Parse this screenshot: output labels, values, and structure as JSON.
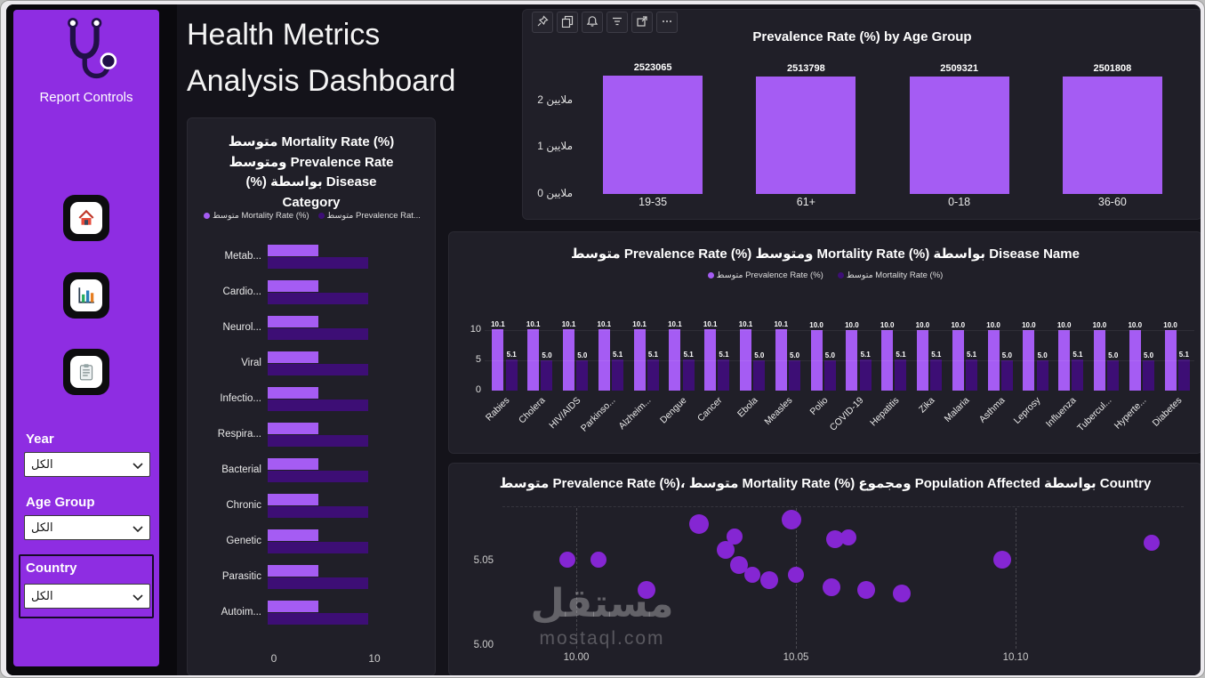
{
  "page": {
    "title_line1": "Health Metrics",
    "title_line2": "Analysis Dashboard"
  },
  "sidebar": {
    "title": "Report Controls",
    "filters": [
      {
        "label": "Year",
        "value": "الكل"
      },
      {
        "label": "Age Group",
        "value": "الكل"
      },
      {
        "label": "Country",
        "value": "الكل"
      }
    ],
    "nav_icons": [
      "home-icon",
      "bar-chart-icon",
      "clipboard-icon"
    ]
  },
  "toolbar": {
    "icons": [
      "pin",
      "copy",
      "alert",
      "filter",
      "popout",
      "more"
    ]
  },
  "watermark": {
    "line1": "مستقل",
    "line2": "mostaql.com"
  },
  "colors": {
    "accent_light": "#a55cf3",
    "accent_dark": "#3d0e75",
    "scatter": "#8526d3",
    "sidebar": "#8e2de2",
    "card_bg": "#201f28",
    "canvas_bg": "#14131a"
  },
  "chart_data": [
    {
      "id": "age_group_bar",
      "type": "bar",
      "title": "Prevalence Rate (%) by Age Group",
      "categories": [
        "19-35",
        "61+",
        "0-18",
        "36-60"
      ],
      "values": [
        2523065,
        2513798,
        2509321,
        2501808
      ],
      "value_labels": [
        "2523065",
        "2513798",
        "2509321",
        "2501808"
      ],
      "y_ticks": [
        {
          "label": "0 ملايين",
          "value": 0
        },
        {
          "label": "1 ملايين",
          "value": 1000000
        },
        {
          "label": "2 ملايين",
          "value": 2000000
        }
      ],
      "ylim": [
        0,
        2850000
      ],
      "grid": false,
      "legend_position": "none"
    },
    {
      "id": "disease_category_hbar",
      "type": "bar",
      "orientation": "horizontal",
      "title": "متوسط Mortality Rate (%) ومتوسط Prevalence Rate (%) بواسطة Disease Category",
      "legend": [
        {
          "label": "متوسط Mortality Rate (%)",
          "color": "#a55cf3"
        },
        {
          "label": "متوسط Prevalence Rat...",
          "color": "#3d0e75"
        }
      ],
      "categories": [
        "Metab...",
        "Cardio...",
        "Neurol...",
        "Viral",
        "Infectio...",
        "Respira...",
        "Bacterial",
        "Chronic",
        "Genetic",
        "Parasitic",
        "Autoim..."
      ],
      "series": [
        {
          "name": "متوسط Mortality Rate (%)",
          "color": "#a55cf3",
          "values": [
            5,
            5,
            5,
            5,
            5,
            5,
            5,
            5,
            5,
            5,
            5
          ]
        },
        {
          "name": "متوسط Prevalence Rate (%)",
          "color": "#3d0e75",
          "values": [
            10,
            10,
            10,
            10,
            10,
            10,
            10,
            10,
            10,
            10,
            10
          ]
        }
      ],
      "xlim": [
        0,
        10
      ],
      "x_ticks": [
        "0",
        "10"
      ],
      "legend_position": "top-left"
    },
    {
      "id": "disease_name_columns",
      "type": "bar",
      "title": "متوسط Prevalence Rate (%) ومتوسط Mortality Rate (%) بواسطة Disease Name",
      "legend": [
        {
          "label": "متوسط Prevalence Rate (%)",
          "color": "#a55cf3"
        },
        {
          "label": "متوسط Mortality Rate (%)",
          "color": "#3d0e75"
        }
      ],
      "categories": [
        "Rabies",
        "Cholera",
        "HIV/AIDS",
        "Parkinso...",
        "Alzheim...",
        "Dengue",
        "Cancer",
        "Ebola",
        "Measles",
        "Polio",
        "COVID-19",
        "Hepatitis",
        "Zika",
        "Malaria",
        "Asthma",
        "Leprosy",
        "Influenza",
        "Tubercul...",
        "Hyperte...",
        "Diabetes"
      ],
      "series": [
        {
          "name": "متوسط Prevalence Rate (%)",
          "color": "#a55cf3",
          "values": [
            10.1,
            10.1,
            10.1,
            10.1,
            10.1,
            10.1,
            10.1,
            10.1,
            10.1,
            10.0,
            10.0,
            10.0,
            10.0,
            10.0,
            10.0,
            10.0,
            10.0,
            10.0,
            10.0,
            10.0
          ]
        },
        {
          "name": "متوسط Mortality Rate (%)",
          "color": "#3d0e75",
          "values": [
            5.1,
            5.0,
            5.0,
            5.1,
            5.1,
            5.1,
            5.1,
            5.0,
            5.0,
            5.0,
            5.1,
            5.1,
            5.1,
            5.1,
            5.0,
            5.0,
            5.1,
            5.0,
            5.0,
            5.1
          ]
        }
      ],
      "y_ticks": [
        {
          "label": "0",
          "value": 0
        },
        {
          "label": "5",
          "value": 5
        },
        {
          "label": "10",
          "value": 10
        }
      ],
      "ylim": [
        0,
        10.6
      ],
      "grid": true,
      "legend_position": "top-center"
    },
    {
      "id": "country_scatter",
      "type": "scatter",
      "title": "متوسط Prevalence Rate (%)، متوسط Mortality Rate (%) ومجموع Population Affected بواسطة Country",
      "x_ticks": [
        "10.00",
        "10.05",
        "10.10"
      ],
      "y_ticks": [
        "5.05",
        "5.00"
      ],
      "xlim": [
        9.98,
        10.145
      ],
      "ylim": [
        4.995,
        5.085
      ],
      "points": [
        {
          "x": 9.998,
          "y": 5.051,
          "r": 9
        },
        {
          "x": 10.005,
          "y": 5.051,
          "r": 9
        },
        {
          "x": 10.016,
          "y": 5.033,
          "r": 10
        },
        {
          "x": 10.028,
          "y": 5.072,
          "r": 11
        },
        {
          "x": 10.034,
          "y": 5.057,
          "r": 10
        },
        {
          "x": 10.036,
          "y": 5.065,
          "r": 9
        },
        {
          "x": 10.037,
          "y": 5.048,
          "r": 10
        },
        {
          "x": 10.04,
          "y": 5.042,
          "r": 9
        },
        {
          "x": 10.044,
          "y": 5.039,
          "r": 10
        },
        {
          "x": 10.049,
          "y": 5.075,
          "r": 11
        },
        {
          "x": 10.05,
          "y": 5.042,
          "r": 9
        },
        {
          "x": 10.058,
          "y": 5.035,
          "r": 10
        },
        {
          "x": 10.059,
          "y": 5.063,
          "r": 10
        },
        {
          "x": 10.062,
          "y": 5.064,
          "r": 9
        },
        {
          "x": 10.066,
          "y": 5.033,
          "r": 10
        },
        {
          "x": 10.074,
          "y": 5.031,
          "r": 10
        },
        {
          "x": 10.097,
          "y": 5.051,
          "r": 10
        },
        {
          "x": 10.131,
          "y": 5.061,
          "r": 9
        }
      ]
    }
  ]
}
